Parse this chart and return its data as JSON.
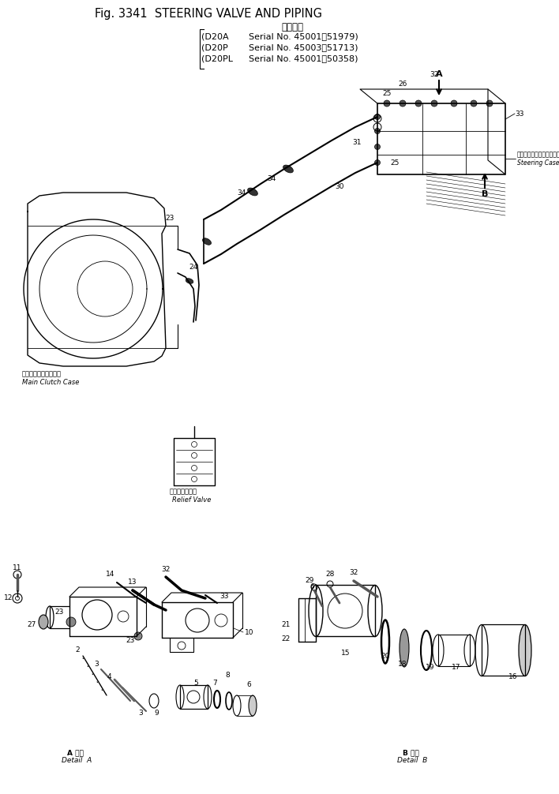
{
  "title": "Fig. 3341  STEERING VALVE AND PIPING",
  "jp_title": "適用号機",
  "serial1": "D20A   Serial No. 45001～51979",
  "serial2": "D20P   Serial No. 45003～51713",
  "serial3": "D20PL  Serial No. 45001～50358",
  "bg": "#ffffff",
  "lc": "#000000"
}
